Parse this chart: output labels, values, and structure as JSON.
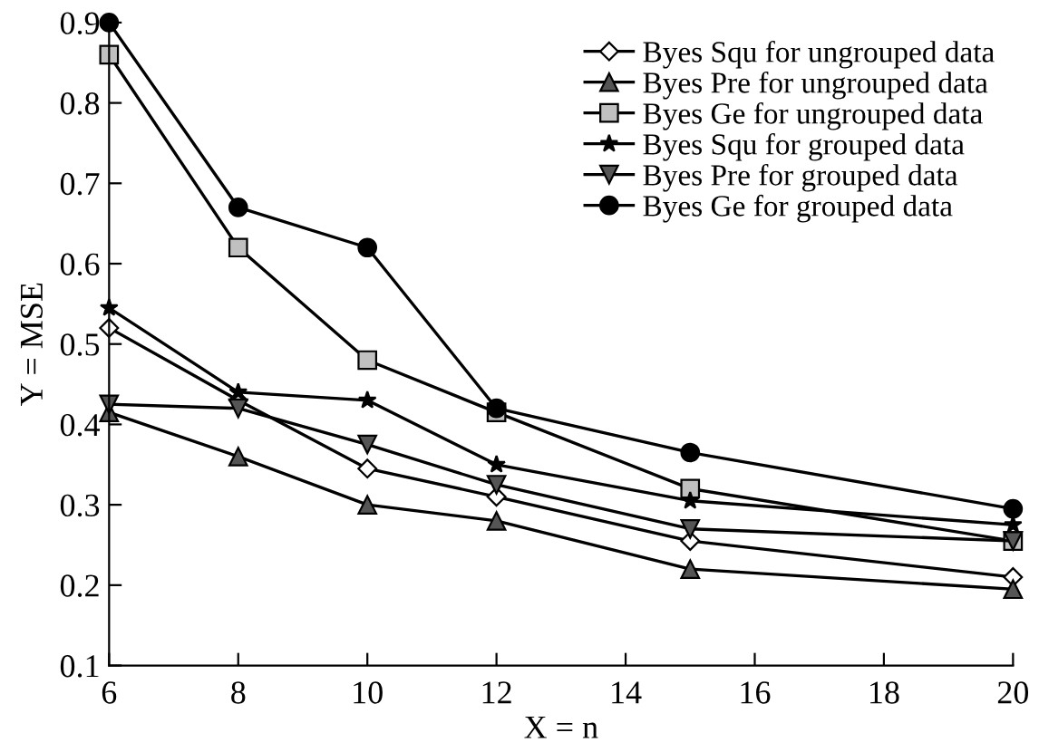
{
  "chart_data": {
    "type": "line",
    "xlabel": "X = n",
    "ylabel": "Y = MSE",
    "x": [
      6,
      8,
      10,
      12,
      15,
      20
    ],
    "series": [
      {
        "name": "Byes Squ for ungrouped data",
        "color": "#ffffff",
        "marker": "diamond",
        "values": [
          0.52,
          0.43,
          0.345,
          0.31,
          0.255,
          0.21
        ]
      },
      {
        "name": "Byes Pre for ungrouped data",
        "color": "#555555",
        "marker": "triangle",
        "values": [
          0.415,
          0.36,
          0.3,
          0.28,
          0.22,
          0.195
        ]
      },
      {
        "name": "Byes Ge for ungrouped data",
        "color": "#c0c0c0",
        "marker": "square",
        "values": [
          0.86,
          0.62,
          0.48,
          0.415,
          0.32,
          0.255
        ]
      },
      {
        "name": "Byes Squ for grouped data",
        "color": "#000000",
        "marker": "star",
        "values": [
          0.545,
          0.44,
          0.43,
          0.35,
          0.305,
          0.275
        ]
      },
      {
        "name": "Byes Pre for grouped data",
        "color": "#555555",
        "marker": "triangle_down",
        "values": [
          0.425,
          0.42,
          0.375,
          0.325,
          0.27,
          0.255
        ]
      },
      {
        "name": "Byes Ge for grouped data",
        "color": "#000000",
        "marker": "circle",
        "values": [
          0.9,
          0.67,
          0.62,
          0.42,
          0.365,
          0.295
        ]
      }
    ],
    "xlim": [
      6,
      20
    ],
    "xticks": [
      6,
      8,
      10,
      12,
      14,
      16,
      18,
      20
    ],
    "ylim": [
      0.1,
      0.9
    ],
    "yticks": [
      0.1,
      0.2,
      0.3,
      0.4,
      0.5,
      0.6,
      0.7,
      0.8,
      0.9
    ],
    "grid": false,
    "legend": "top right",
    "line_style": "solid"
  }
}
